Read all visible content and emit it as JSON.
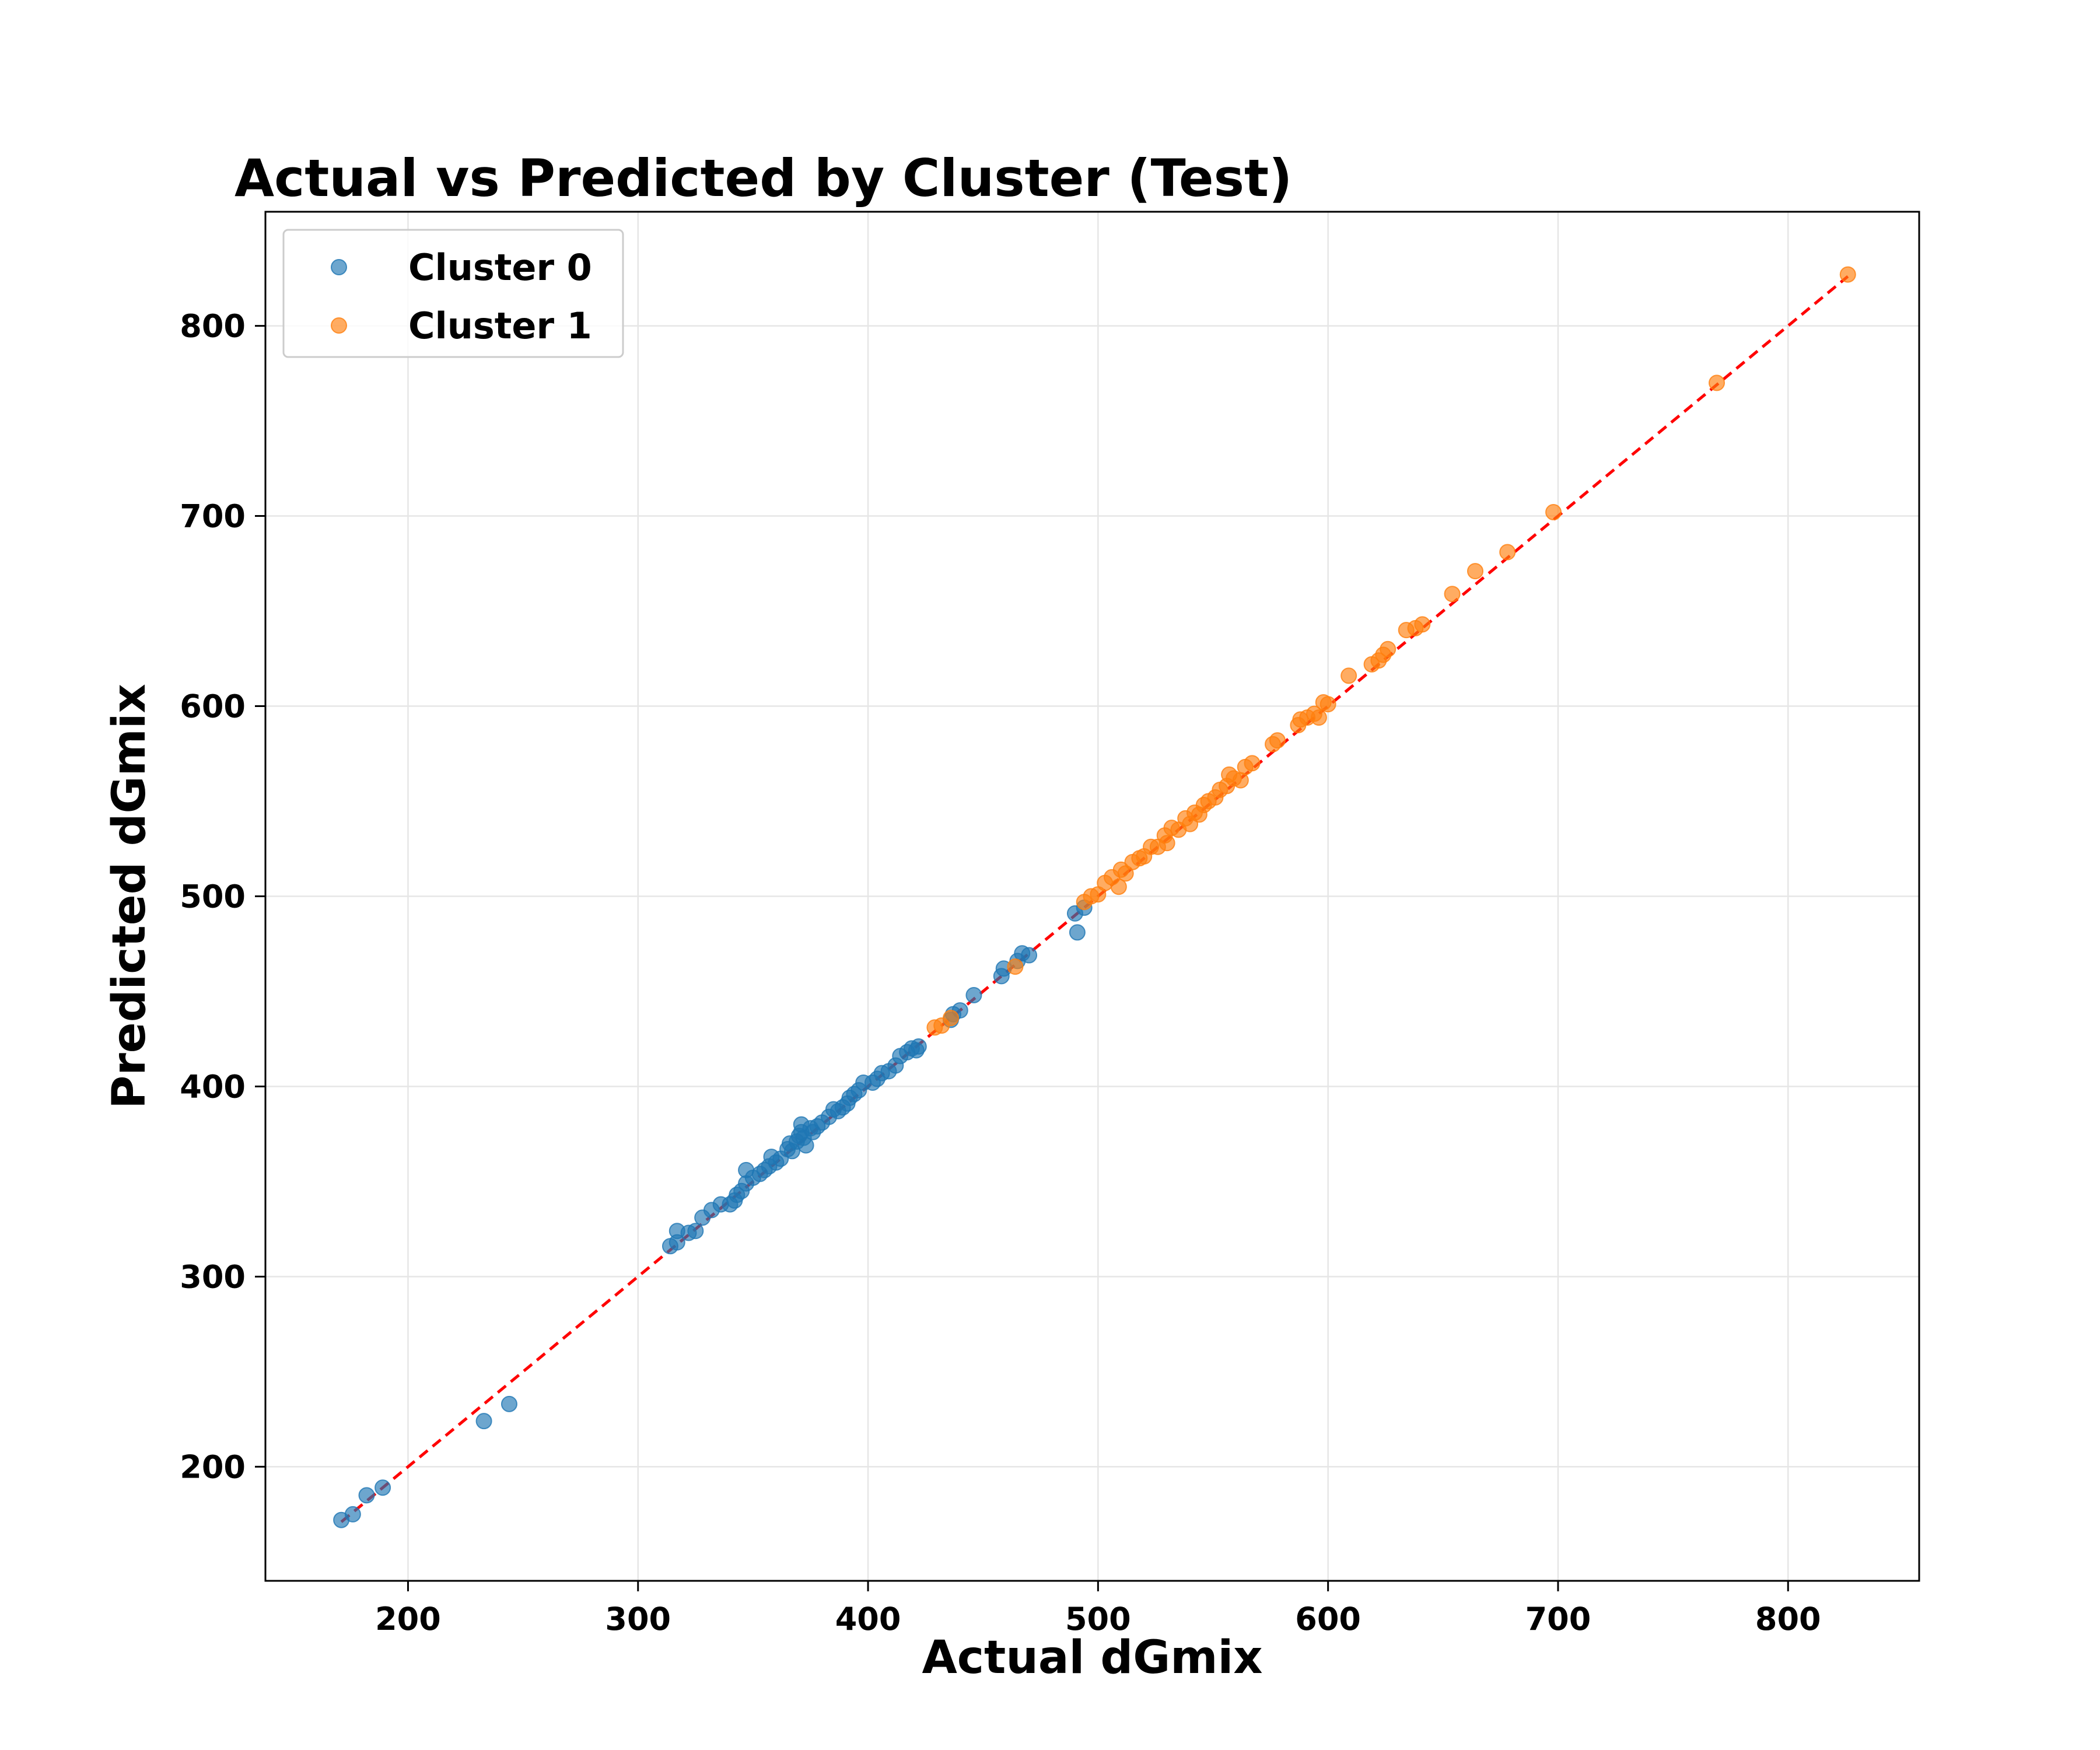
{
  "chart_data": {
    "type": "scatter",
    "title": "Actual vs Predicted by Cluster (Test)",
    "xlabel": "Actual dGmix",
    "ylabel": "Predicted dGmix",
    "xlim": [
      138,
      857
    ],
    "ylim": [
      140,
      860
    ],
    "xticks": [
      200,
      300,
      400,
      500,
      600,
      700,
      800
    ],
    "yticks": [
      200,
      300,
      400,
      500,
      600,
      700,
      800
    ],
    "grid": true,
    "legend_position": "top-left",
    "reference_line": {
      "name": "",
      "color": "#ff0000",
      "style": "dashed",
      "x": [
        171,
        826
      ],
      "y": [
        171,
        826
      ]
    },
    "series": [
      {
        "name": "Cluster 0",
        "color": "#1f77b4",
        "points": [
          [
            171,
            172
          ],
          [
            176,
            175
          ],
          [
            182,
            185
          ],
          [
            189,
            189
          ],
          [
            233,
            224
          ],
          [
            244,
            233
          ],
          [
            314,
            316
          ],
          [
            317,
            318
          ],
          [
            317,
            324
          ],
          [
            322,
            323
          ],
          [
            325,
            324
          ],
          [
            328,
            331
          ],
          [
            332,
            335
          ],
          [
            336,
            338
          ],
          [
            340,
            338
          ],
          [
            342,
            340
          ],
          [
            343,
            343
          ],
          [
            345,
            345
          ],
          [
            347,
            349
          ],
          [
            347,
            356
          ],
          [
            350,
            352
          ],
          [
            353,
            354
          ],
          [
            355,
            356
          ],
          [
            357,
            358
          ],
          [
            358,
            363
          ],
          [
            360,
            360
          ],
          [
            362,
            362
          ],
          [
            365,
            367
          ],
          [
            366,
            370
          ],
          [
            367,
            366
          ],
          [
            369,
            371
          ],
          [
            370,
            374
          ],
          [
            371,
            376
          ],
          [
            371,
            380
          ],
          [
            372,
            373
          ],
          [
            373,
            369
          ],
          [
            375,
            378
          ],
          [
            376,
            376
          ],
          [
            378,
            379
          ],
          [
            380,
            381
          ],
          [
            383,
            384
          ],
          [
            385,
            388
          ],
          [
            387,
            387
          ],
          [
            389,
            389
          ],
          [
            391,
            391
          ],
          [
            392,
            394
          ],
          [
            394,
            396
          ],
          [
            396,
            398
          ],
          [
            398,
            402
          ],
          [
            402,
            402
          ],
          [
            404,
            404
          ],
          [
            406,
            407
          ],
          [
            409,
            408
          ],
          [
            412,
            411
          ],
          [
            414,
            416
          ],
          [
            417,
            418
          ],
          [
            419,
            420
          ],
          [
            421,
            419
          ],
          [
            422,
            421
          ],
          [
            436,
            435
          ],
          [
            437,
            438
          ],
          [
            440,
            440
          ],
          [
            446,
            448
          ],
          [
            458,
            458
          ],
          [
            459,
            462
          ],
          [
            465,
            466
          ],
          [
            467,
            470
          ],
          [
            470,
            469
          ],
          [
            490,
            491
          ],
          [
            491,
            481
          ],
          [
            494,
            494
          ]
        ]
      },
      {
        "name": "Cluster 1",
        "color": "#ff7f0e",
        "points": [
          [
            429,
            431
          ],
          [
            432,
            432
          ],
          [
            436,
            436
          ],
          [
            464,
            463
          ],
          [
            494,
            497
          ],
          [
            497,
            500
          ],
          [
            500,
            501
          ],
          [
            503,
            507
          ],
          [
            506,
            510
          ],
          [
            509,
            505
          ],
          [
            510,
            514
          ],
          [
            512,
            512
          ],
          [
            515,
            518
          ],
          [
            518,
            520
          ],
          [
            520,
            521
          ],
          [
            523,
            526
          ],
          [
            526,
            526
          ],
          [
            529,
            532
          ],
          [
            530,
            528
          ],
          [
            532,
            536
          ],
          [
            535,
            535
          ],
          [
            538,
            541
          ],
          [
            540,
            538
          ],
          [
            542,
            544
          ],
          [
            544,
            543
          ],
          [
            546,
            548
          ],
          [
            548,
            550
          ],
          [
            551,
            552
          ],
          [
            553,
            556
          ],
          [
            556,
            558
          ],
          [
            557,
            564
          ],
          [
            559,
            562
          ],
          [
            562,
            561
          ],
          [
            564,
            568
          ],
          [
            567,
            570
          ],
          [
            576,
            580
          ],
          [
            578,
            582
          ],
          [
            587,
            590
          ],
          [
            588,
            593
          ],
          [
            591,
            594
          ],
          [
            594,
            596
          ],
          [
            596,
            594
          ],
          [
            598,
            602
          ],
          [
            600,
            601
          ],
          [
            609,
            616
          ],
          [
            619,
            622
          ],
          [
            622,
            624
          ],
          [
            624,
            627
          ],
          [
            626,
            630
          ],
          [
            634,
            640
          ],
          [
            638,
            641
          ],
          [
            641,
            643
          ],
          [
            654,
            659
          ],
          [
            664,
            671
          ],
          [
            678,
            681
          ],
          [
            698,
            702
          ],
          [
            769,
            770
          ],
          [
            826,
            827
          ]
        ]
      }
    ]
  }
}
